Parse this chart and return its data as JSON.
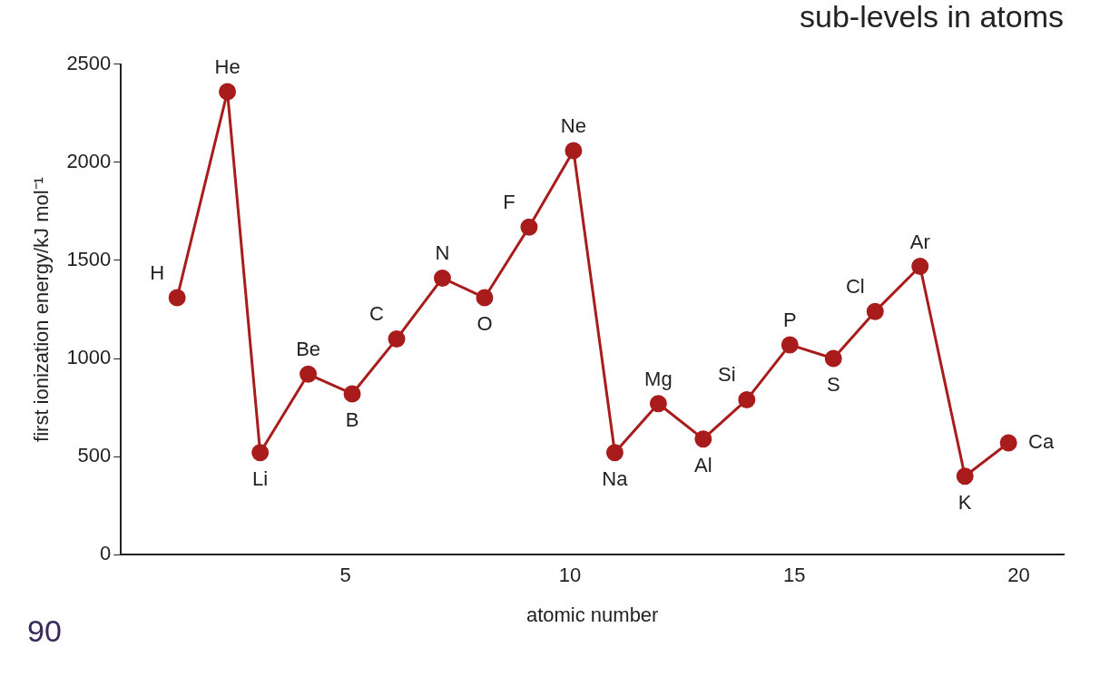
{
  "chart_data": {
    "type": "line",
    "title": "sub-levels in atoms",
    "xlabel": "atomic number",
    "ylabel": "first ionization energy/kJ mol⁻¹",
    "x": [
      1.25,
      2.37,
      3.1,
      4.17,
      5.15,
      6.14,
      7.16,
      8.1,
      9.09,
      10.08,
      11.0,
      11.97,
      12.97,
      13.94,
      14.9,
      15.87,
      16.8,
      17.8,
      18.8,
      19.77
    ],
    "series": [
      {
        "color": "#a81c1c",
        "values": [
          1310,
          2360,
          520,
          920,
          820,
          1100,
          1410,
          1310,
          1670,
          2060,
          520,
          770,
          590,
          790,
          1070,
          1000,
          1240,
          1470,
          400,
          570
        ]
      }
    ],
    "xlim": [
      0,
      21
    ],
    "xticks": [
      5,
      10,
      15,
      20
    ],
    "ylim": [
      0,
      2500
    ],
    "yticks": [
      0,
      500,
      1000,
      1500,
      2000,
      2500
    ],
    "marker": "circle",
    "line_style": "solid",
    "grid": false,
    "legend": false,
    "annotations": [
      {
        "text": "H",
        "x": 1.25,
        "y": 1310
      },
      {
        "text": "He",
        "x": 2.37,
        "y": 2360
      },
      {
        "text": "Li",
        "x": 3.1,
        "y": 520
      },
      {
        "text": "Be",
        "x": 4.17,
        "y": 920
      },
      {
        "text": "B",
        "x": 5.15,
        "y": 820
      },
      {
        "text": "C",
        "x": 6.14,
        "y": 1100
      },
      {
        "text": "N",
        "x": 7.16,
        "y": 1410
      },
      {
        "text": "O",
        "x": 8.1,
        "y": 1310
      },
      {
        "text": "F",
        "x": 9.09,
        "y": 1670
      },
      {
        "text": "Ne",
        "x": 10.08,
        "y": 2060
      },
      {
        "text": "Na",
        "x": 11.0,
        "y": 520
      },
      {
        "text": "Mg",
        "x": 11.97,
        "y": 770
      },
      {
        "text": "Al",
        "x": 12.97,
        "y": 590
      },
      {
        "text": "Si",
        "x": 13.94,
        "y": 790
      },
      {
        "text": "P",
        "x": 14.9,
        "y": 1070
      },
      {
        "text": "S",
        "x": 15.87,
        "y": 1000
      },
      {
        "text": "Cl",
        "x": 16.8,
        "y": 1240
      },
      {
        "text": "Ar",
        "x": 17.8,
        "y": 1470
      },
      {
        "text": "K",
        "x": 18.8,
        "y": 400
      },
      {
        "text": "Ca",
        "x": 19.77,
        "y": 570
      },
      "90"
    ]
  }
}
